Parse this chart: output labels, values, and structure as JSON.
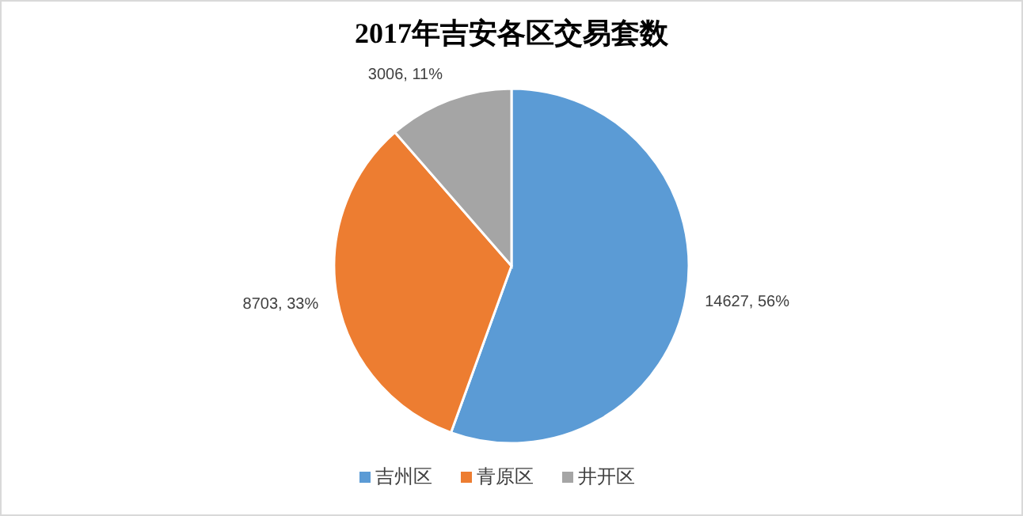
{
  "chart_data": {
    "type": "pie",
    "title": "2017年吉安各区交易套数",
    "categories": [
      "吉州区",
      "青原区",
      "井开区"
    ],
    "values": [
      14627,
      8703,
      3006
    ],
    "colors": [
      "#5b9bd5",
      "#ed7d31",
      "#a5a5a5"
    ],
    "value_labels": [
      "14627, 56%",
      "8703, 33%",
      "3006, 11%"
    ],
    "legend": "bottom"
  }
}
